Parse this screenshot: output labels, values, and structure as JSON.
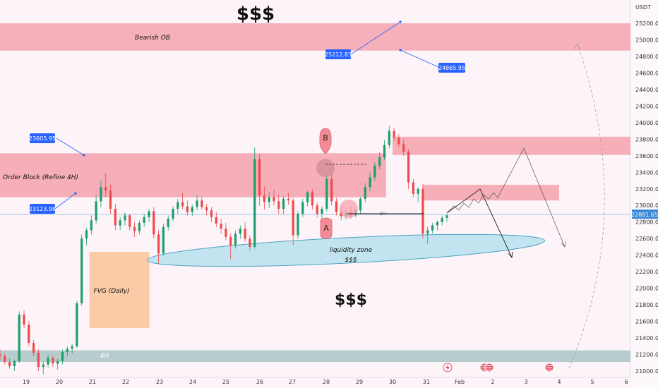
{
  "chart_data": {
    "type": "candlestick",
    "currency": "USDT",
    "ylim": [
      21000,
      25400
    ],
    "y_ticks": [
      21000,
      21200,
      21400,
      21600,
      21800,
      22000,
      22200,
      22400,
      22600,
      22800,
      23000,
      23200,
      23400,
      23600,
      23800,
      24000,
      24200,
      24400,
      24600,
      24800,
      25000,
      25200
    ],
    "x_ticks": [
      "19",
      "20",
      "21",
      "22",
      "23",
      "24",
      "25",
      "26",
      "27",
      "28",
      "29",
      "30",
      "31",
      "Feb",
      "2",
      "3",
      "4",
      "5",
      "6"
    ],
    "last_price": "22881.65",
    "headline_top": "$$$",
    "headline_bottom": "$$$",
    "zones": [
      {
        "label": "Bearish OB",
        "y_top": 25200,
        "y_bottom": 24870,
        "x_from": "19",
        "x_to": "end",
        "color": "#f5a3ad"
      },
      {
        "label": "Order Block (Refine 4H)",
        "y_top": 23630,
        "y_bottom": 23100,
        "x_from": "19",
        "x_to": "29.8",
        "color": "#f4a1ac"
      },
      {
        "label": "",
        "y_top": 23830,
        "y_bottom": 23610,
        "x_from": "30",
        "x_to": "end",
        "color": "#f4a1ac"
      },
      {
        "label": "",
        "y_top": 23250,
        "y_bottom": 23060,
        "x_from": "30.9",
        "x_to": "4",
        "color": "#f4a1ac"
      },
      {
        "label": "FVG (Daily)",
        "y_top": 22440,
        "y_bottom": 21520,
        "x_from": "20.9",
        "x_to": "22.7",
        "color": "#f9c79c"
      },
      {
        "label": "4H",
        "y_top": 21250,
        "y_bottom": 21110,
        "x_from": "19",
        "x_to": "end",
        "color": "#a9c4c4"
      }
    ],
    "liquidity_zone": {
      "label": "liquidity zone",
      "sublabel": "$$$"
    },
    "callouts": [
      "23605.95",
      "23123.98",
      "25212.83",
      "24865.95"
    ],
    "point_labels": [
      "A",
      "B"
    ],
    "ch_label": "CH",
    "candles": [
      [
        21200,
        21260,
        21130,
        21180
      ],
      [
        21180,
        21210,
        21080,
        21110
      ],
      [
        21110,
        21150,
        21030,
        21060
      ],
      [
        21060,
        21140,
        21000,
        21120
      ],
      [
        21120,
        21720,
        21100,
        21680
      ],
      [
        21680,
        21730,
        21520,
        21560
      ],
      [
        21560,
        21600,
        21300,
        21340
      ],
      [
        21340,
        21380,
        21180,
        21220
      ],
      [
        21220,
        21260,
        21000,
        21050
      ],
      [
        21050,
        21120,
        20960,
        21080
      ],
      [
        21080,
        21200,
        21040,
        21160
      ],
      [
        21160,
        21190,
        21050,
        21090
      ],
      [
        21090,
        21150,
        21020,
        21120
      ],
      [
        21120,
        21260,
        21080,
        21230
      ],
      [
        21230,
        21300,
        21180,
        21270
      ],
      [
        21270,
        21330,
        21210,
        21300
      ],
      [
        21300,
        21850,
        21280,
        21820
      ],
      [
        21820,
        22650,
        21790,
        22600
      ],
      [
        22600,
        22730,
        22520,
        22700
      ],
      [
        22700,
        22880,
        22650,
        22820
      ],
      [
        22820,
        23120,
        22780,
        23050
      ],
      [
        23050,
        23300,
        22980,
        23220
      ],
      [
        23220,
        23390,
        23100,
        23180
      ],
      [
        23180,
        23250,
        22900,
        22960
      ],
      [
        22960,
        23020,
        22700,
        22760
      ],
      [
        22760,
        22860,
        22700,
        22820
      ],
      [
        22820,
        22920,
        22760,
        22880
      ],
      [
        22880,
        22900,
        22700,
        22740
      ],
      [
        22740,
        22800,
        22620,
        22690
      ],
      [
        22690,
        22820,
        22650,
        22790
      ],
      [
        22790,
        22900,
        22740,
        22860
      ],
      [
        22860,
        22960,
        22800,
        22930
      ],
      [
        22930,
        22980,
        22600,
        22650
      ],
      [
        22650,
        22700,
        22300,
        22420
      ],
      [
        22420,
        22780,
        22400,
        22740
      ],
      [
        22740,
        22880,
        22700,
        22840
      ],
      [
        22840,
        22990,
        22810,
        22960
      ],
      [
        22960,
        23080,
        22900,
        23040
      ],
      [
        23040,
        23150,
        22950,
        22990
      ],
      [
        22990,
        23060,
        22880,
        22920
      ],
      [
        22920,
        23010,
        22870,
        22980
      ],
      [
        22980,
        23120,
        22940,
        23060
      ],
      [
        23060,
        23110,
        22950,
        22980
      ],
      [
        22980,
        23020,
        22880,
        22940
      ],
      [
        22940,
        22980,
        22800,
        22860
      ],
      [
        22860,
        22920,
        22740,
        22780
      ],
      [
        22780,
        22840,
        22660,
        22720
      ],
      [
        22720,
        22790,
        22580,
        22620
      ],
      [
        22620,
        22660,
        22350,
        22520
      ],
      [
        22520,
        22700,
        22480,
        22660
      ],
      [
        22660,
        22760,
        22600,
        22720
      ],
      [
        22720,
        22800,
        22560,
        22600
      ],
      [
        22600,
        22640,
        22450,
        22500
      ],
      [
        22500,
        23700,
        22480,
        23560
      ],
      [
        23560,
        23620,
        23000,
        23120
      ],
      [
        23120,
        23230,
        22950,
        23040
      ],
      [
        23040,
        23160,
        22970,
        23100
      ],
      [
        23100,
        23190,
        23000,
        23050
      ],
      [
        23050,
        23130,
        22900,
        22960
      ],
      [
        22960,
        23110,
        22900,
        23080
      ],
      [
        23080,
        23150,
        23010,
        23060
      ],
      [
        23060,
        23090,
        22520,
        22640
      ],
      [
        22640,
        22930,
        22600,
        22900
      ],
      [
        22900,
        23080,
        22860,
        23040
      ],
      [
        23040,
        23180,
        22990,
        23160
      ],
      [
        23160,
        23200,
        22950,
        23000
      ],
      [
        23000,
        23040,
        22860,
        22900
      ],
      [
        22900,
        22990,
        22840,
        22960
      ],
      [
        22960,
        23380,
        22930,
        23320
      ],
      [
        23320,
        23400,
        23000,
        23050
      ],
      [
        23050,
        23090,
        22880,
        22920
      ],
      [
        22920,
        22980,
        22820,
        22870
      ],
      [
        22870,
        22950,
        22830,
        22920
      ],
      [
        22920,
        22980,
        22840,
        22880
      ],
      [
        22880,
        22960,
        22860,
        22940
      ],
      [
        22940,
        23100,
        22900,
        23080
      ],
      [
        23080,
        23270,
        23040,
        23220
      ],
      [
        23220,
        23400,
        23170,
        23340
      ],
      [
        23340,
        23520,
        23300,
        23480
      ],
      [
        23480,
        23640,
        23440,
        23580
      ],
      [
        23580,
        23790,
        23550,
        23730
      ],
      [
        23730,
        23960,
        23690,
        23900
      ],
      [
        23900,
        23940,
        23780,
        23820
      ],
      [
        23820,
        23860,
        23700,
        23740
      ],
      [
        23740,
        23800,
        23600,
        23650
      ],
      [
        23650,
        23680,
        23200,
        23280
      ],
      [
        23280,
        23320,
        23100,
        23140
      ],
      [
        23140,
        23220,
        23040,
        23200
      ],
      [
        23200,
        23260,
        22600,
        22660
      ],
      [
        22660,
        22740,
        22540,
        22700
      ],
      [
        22700,
        22790,
        22660,
        22760
      ],
      [
        22760,
        22820,
        22700,
        22800
      ],
      [
        22800,
        22880,
        22760,
        22850
      ],
      [
        22850,
        22900,
        22800,
        22881
      ]
    ]
  }
}
